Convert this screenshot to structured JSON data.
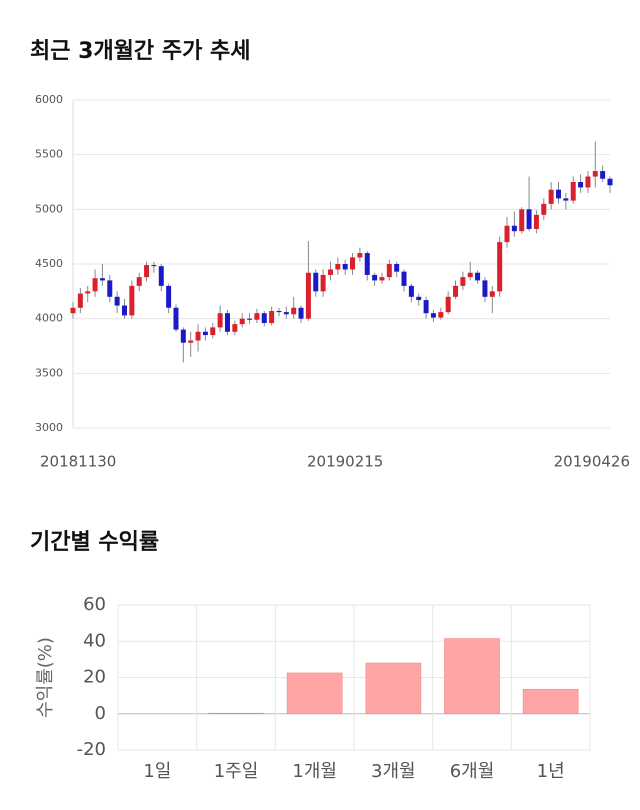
{
  "chart_data": [
    {
      "type": "candlestick",
      "title": "최근 3개월간 주가 추세",
      "categories": [
        "20181130",
        null,
        null,
        null,
        null,
        null,
        null,
        null,
        null,
        null,
        null,
        null,
        null,
        null,
        null,
        null,
        null,
        null,
        null,
        null,
        null,
        null,
        null,
        null,
        null,
        null,
        null,
        null,
        null,
        null,
        null,
        null,
        null,
        null,
        null,
        null,
        null,
        "20190215",
        null,
        null,
        null,
        null,
        null,
        null,
        null,
        null,
        null,
        null,
        null,
        null,
        null,
        null,
        null,
        null,
        null,
        null,
        null,
        null,
        null,
        null,
        null,
        null,
        null,
        null,
        null,
        null,
        null,
        null,
        null,
        null,
        null,
        null,
        null,
        "20190426"
      ],
      "open": [
        4050,
        4100,
        4230,
        4250,
        4370,
        4350,
        4200,
        4120,
        4030,
        4300,
        4380,
        4490,
        4480,
        4300,
        4100,
        3900,
        3780,
        3800,
        3880,
        3850,
        3920,
        4050,
        3880,
        3950,
        4000,
        3990,
        4050,
        3960,
        4070,
        4060,
        4040,
        4100,
        4000,
        4420,
        4250,
        4400,
        4450,
        4500,
        4450,
        4560,
        4600,
        4400,
        4350,
        4380,
        4500,
        4430,
        4300,
        4200,
        4170,
        4050,
        4010,
        4060,
        4200,
        4300,
        4380,
        4420,
        4350,
        4200,
        4250,
        4700,
        4850,
        4800,
        5000,
        4820,
        4950,
        5050,
        5180,
        5100,
        5080,
        5250,
        5200,
        5300,
        5350,
        5280
      ],
      "high": [
        4150,
        4280,
        4300,
        4450,
        4500,
        4400,
        4250,
        4180,
        4350,
        4420,
        4520,
        4520,
        4500,
        4320,
        4130,
        3920,
        3880,
        3950,
        3920,
        3960,
        4120,
        4080,
        3980,
        4050,
        4050,
        4090,
        4070,
        4110,
        4100,
        4110,
        4200,
        4120,
        4710,
        4450,
        4450,
        4520,
        4560,
        4540,
        4600,
        4650,
        4620,
        4420,
        4420,
        4540,
        4520,
        4450,
        4320,
        4230,
        4200,
        4080,
        4100,
        4250,
        4350,
        4430,
        4520,
        4440,
        4380,
        4300,
        4750,
        4930,
        4980,
        5020,
        5300,
        4990,
        5100,
        5250,
        5250,
        5150,
        5300,
        5320,
        5350,
        5620,
        5400,
        5300
      ],
      "low": [
        4000,
        4050,
        4150,
        4200,
        4300,
        4150,
        4050,
        4000,
        4000,
        4250,
        4340,
        4420,
        4250,
        4050,
        3880,
        3600,
        3650,
        3700,
        3800,
        3820,
        3880,
        3850,
        3850,
        3920,
        3950,
        3960,
        3930,
        3940,
        4020,
        4000,
        4000,
        3960,
        3980,
        4200,
        4200,
        4350,
        4400,
        4400,
        4400,
        4520,
        4350,
        4300,
        4320,
        4350,
        4380,
        4250,
        4150,
        4120,
        4000,
        3970,
        3990,
        4040,
        4180,
        4260,
        4350,
        4320,
        4150,
        4050,
        4200,
        4650,
        4750,
        4780,
        4800,
        4780,
        4900,
        5000,
        5050,
        5000,
        5050,
        5150,
        5150,
        5200,
        5250,
        5150
      ],
      "close": [
        4100,
        4230,
        4250,
        4370,
        4350,
        4200,
        4120,
        4030,
        4300,
        4380,
        4490,
        4480,
        4300,
        4100,
        3900,
        3780,
        3800,
        3880,
        3850,
        3920,
        4050,
        3880,
        3950,
        4000,
        3990,
        4050,
        3960,
        4070,
        4060,
        4040,
        4100,
        4000,
        4420,
        4250,
        4400,
        4450,
        4500,
        4450,
        4560,
        4600,
        4400,
        4350,
        4380,
        4500,
        4430,
        4300,
        4200,
        4170,
        4050,
        4010,
        4060,
        4200,
        4300,
        4380,
        4420,
        4350,
        4200,
        4250,
        4700,
        4850,
        4800,
        5000,
        4820,
        4950,
        5050,
        5180,
        5100,
        5080,
        5250,
        5200,
        5300,
        5350,
        5280,
        5220
      ],
      "up_color": "#d9202c",
      "down_color": "#1a1ac8",
      "ylim": [
        3000,
        6000
      ],
      "yticks": [
        3000,
        3500,
        4000,
        4500,
        5000,
        5500,
        6000
      ],
      "grid": true
    },
    {
      "type": "bar",
      "title": "기간별 수익률",
      "y_label": "수익률(%)",
      "categories": [
        "1일",
        "1주일",
        "1개월",
        "3개월",
        "6개월",
        "1년"
      ],
      "values": [
        0,
        0.3,
        22.5,
        28,
        41.5,
        13.5
      ],
      "color": "#ffa5a5",
      "ylim": [
        -20,
        60
      ],
      "yticks": [
        -20,
        0,
        20,
        40,
        60
      ],
      "grid": true
    }
  ]
}
